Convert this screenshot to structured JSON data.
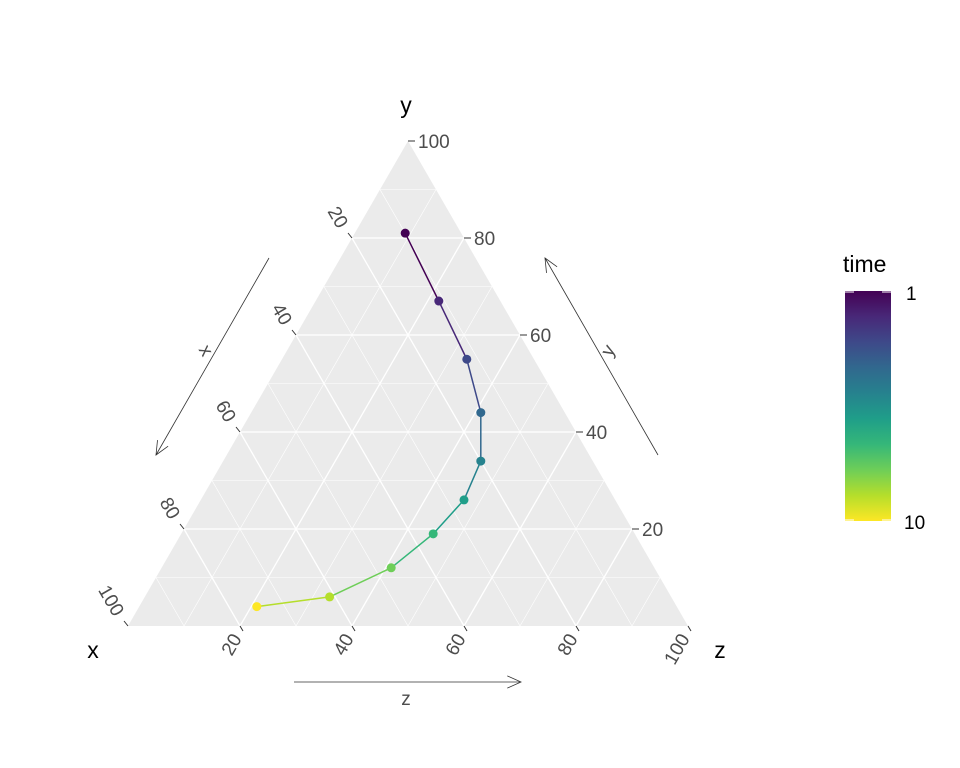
{
  "chart_data": {
    "type": "scatter",
    "subtype": "ternary-line",
    "axes": {
      "x": {
        "title": "x",
        "arrow_label": "x"
      },
      "y": {
        "title": "y",
        "arrow_label": "y"
      },
      "z": {
        "title": "z",
        "arrow_label": "z"
      }
    },
    "ticks": [
      20,
      40,
      60,
      80,
      100
    ],
    "tick_labels": [
      "20",
      "40",
      "60",
      "80",
      "100"
    ],
    "grid": true,
    "background_color": "#ebebeb",
    "points": [
      {
        "time": 1,
        "x": 10,
        "y": 81,
        "z": 9
      },
      {
        "time": 2,
        "x": 11,
        "y": 67,
        "z": 22
      },
      {
        "time": 3,
        "x": 12,
        "y": 55,
        "z": 33
      },
      {
        "time": 4,
        "x": 15,
        "y": 44,
        "z": 41
      },
      {
        "time": 5,
        "x": 20,
        "y": 34,
        "z": 46
      },
      {
        "time": 6,
        "x": 27,
        "y": 26,
        "z": 47
      },
      {
        "time": 7,
        "x": 36,
        "y": 19,
        "z": 45
      },
      {
        "time": 8,
        "x": 47,
        "y": 12,
        "z": 41
      },
      {
        "time": 9,
        "x": 61,
        "y": 6,
        "z": 33
      },
      {
        "time": 10,
        "x": 75,
        "y": 4,
        "z": 21
      }
    ],
    "legend": {
      "title": "time",
      "min_label": "1",
      "max_label": "10",
      "placement": "right",
      "colors": [
        "#440154",
        "#482878",
        "#3e4989",
        "#31688e",
        "#26828e",
        "#1f9e89",
        "#35b779",
        "#6ece58",
        "#b5de2b",
        "#fde725"
      ]
    }
  }
}
